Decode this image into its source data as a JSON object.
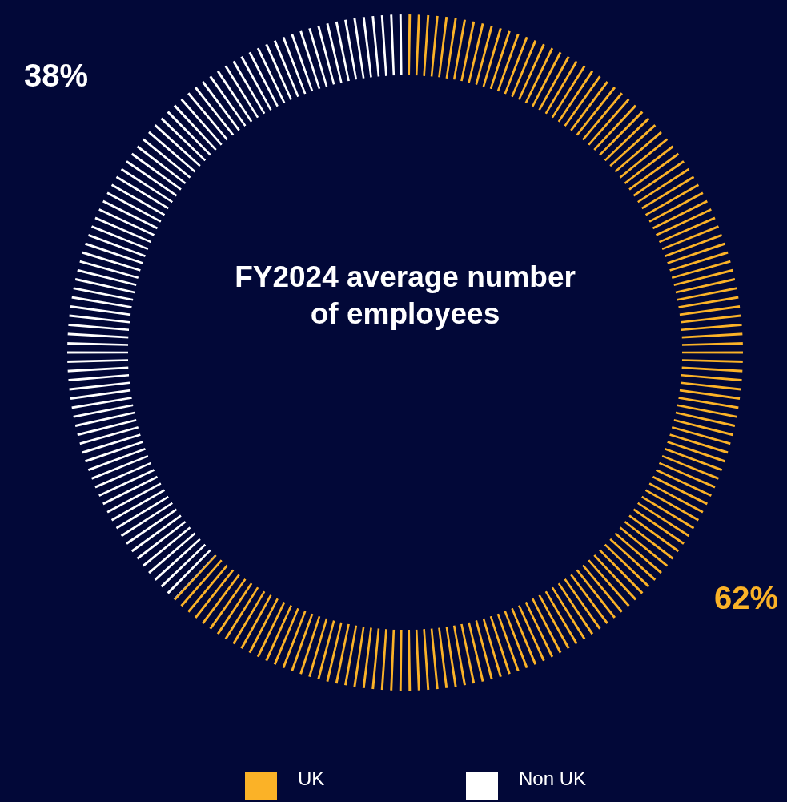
{
  "chart_data": {
    "type": "donut",
    "title": "FY2024 average number of employees",
    "categories": [
      "UK",
      "Non UK"
    ],
    "values": [
      62,
      38
    ],
    "colors": [
      "#fbb227",
      "#ffffff"
    ],
    "value_labels": [
      "62%",
      "38%"
    ],
    "legend": "bottom"
  }
}
